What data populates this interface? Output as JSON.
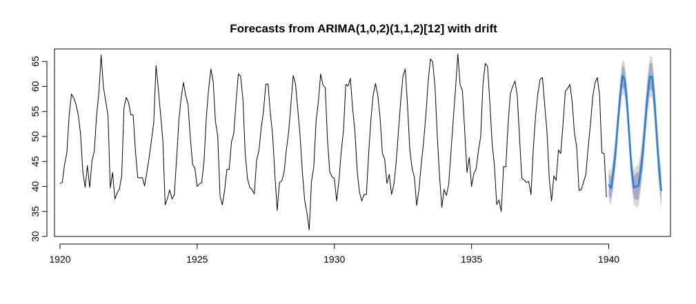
{
  "chart_data": {
    "type": "line",
    "title": "Forecasts from ARIMA(1,0,2)(1,1,2)[12] with drift",
    "xlabel": "",
    "ylabel": "",
    "xlim": [
      1919.8,
      1942.25
    ],
    "ylim": [
      30,
      67.5
    ],
    "x_ticks": [
      "1920",
      "1925",
      "1930",
      "1935",
      "1940"
    ],
    "y_ticks": [
      "30",
      "35",
      "40",
      "45",
      "50",
      "55",
      "60",
      "65"
    ],
    "grid": false,
    "legend": "none",
    "series": [
      {
        "role": "observed",
        "color": "#000000",
        "x_start": 1920.0,
        "step": 0.0833333,
        "values": [
          40.6,
          40.8,
          44.4,
          46.7,
          54.1,
          58.5,
          57.7,
          56.4,
          54.3,
          50.5,
          42.9,
          39.8,
          44.2,
          39.8,
          45.1,
          47.0,
          54.1,
          58.7,
          66.3,
          59.9,
          57.0,
          54.2,
          39.7,
          42.8,
          37.5,
          38.7,
          39.5,
          42.1,
          55.7,
          57.8,
          56.8,
          54.3,
          54.3,
          47.1,
          41.8,
          41.7,
          41.8,
          40.1,
          42.9,
          45.8,
          49.2,
          52.7,
          64.2,
          59.6,
          54.4,
          49.2,
          36.3,
          37.6,
          39.3,
          37.5,
          38.3,
          45.5,
          53.2,
          57.7,
          60.8,
          58.2,
          56.4,
          49.8,
          44.4,
          43.6,
          40.0,
          40.5,
          40.8,
          45.1,
          53.8,
          59.4,
          63.5,
          61.0,
          53.0,
          50.0,
          38.1,
          36.3,
          39.2,
          43.4,
          43.4,
          48.9,
          50.6,
          56.8,
          62.5,
          62.0,
          57.5,
          46.7,
          41.6,
          39.8,
          39.4,
          38.5,
          45.3,
          47.1,
          51.7,
          55.0,
          60.4,
          60.5,
          54.7,
          50.3,
          42.3,
          35.2,
          40.8,
          41.1,
          42.8,
          47.3,
          50.9,
          56.4,
          62.2,
          60.5,
          55.4,
          50.2,
          43.0,
          37.3,
          34.8,
          31.3,
          41.0,
          43.9,
          53.1,
          56.9,
          62.5,
          60.3,
          59.8,
          49.2,
          42.9,
          41.9,
          41.6,
          37.1,
          41.2,
          46.9,
          51.2,
          60.4,
          60.1,
          61.6,
          55.6,
          50.9,
          43.0,
          38.8,
          37.1,
          38.4,
          38.4,
          46.5,
          53.5,
          58.4,
          60.6,
          58.2,
          53.8,
          46.6,
          45.5,
          40.6,
          42.4,
          38.4,
          40.3,
          44.6,
          50.9,
          57.0,
          62.1,
          63.5,
          56.2,
          47.3,
          43.6,
          41.8,
          36.2,
          39.3,
          44.5,
          48.7,
          54.2,
          60.8,
          65.5,
          64.9,
          60.1,
          50.2,
          42.1,
          35.8,
          39.4,
          38.2,
          40.4,
          46.9,
          53.4,
          59.6,
          66.5,
          60.4,
          59.2,
          51.2,
          42.8,
          45.8,
          40.0,
          42.6,
          43.5,
          47.1,
          50.0,
          60.5,
          64.6,
          64.0,
          56.8,
          48.6,
          44.2,
          36.4,
          37.3,
          35.0,
          44.0,
          43.9,
          52.7,
          58.6,
          60.0,
          61.1,
          58.1,
          49.6,
          41.6,
          41.3,
          40.8,
          41.0,
          38.4,
          47.4,
          54.1,
          58.6,
          61.4,
          61.8,
          56.3,
          50.9,
          41.4,
          37.1,
          42.1,
          41.2,
          47.3,
          46.6,
          52.4,
          59.0,
          59.6,
          60.4,
          57.0,
          50.7,
          47.8,
          39.2,
          39.4,
          40.9,
          42.4,
          47.8,
          52.4,
          58.0,
          60.7,
          61.8,
          58.2,
          46.7,
          46.6,
          37.8
        ]
      },
      {
        "role": "forecast",
        "color": "#2a7fd4",
        "x_start": 1940.0,
        "step": 0.0833333,
        "values": [
          40.4,
          39.6,
          42.8,
          47.0,
          52.9,
          58.2,
          62.1,
          61.3,
          56.8,
          50.0,
          43.2,
          39.8,
          40.0,
          40.1,
          43.1,
          47.2,
          53.1,
          58.4,
          62.0,
          61.9,
          57.0,
          50.2,
          43.5,
          39.1
        ],
        "lower_80": [
          38.2,
          37.4,
          40.6,
          44.8,
          50.7,
          56.0,
          59.9,
          59.1,
          54.6,
          47.8,
          41.0,
          37.6,
          37.3,
          37.4,
          40.4,
          44.5,
          50.4,
          55.7,
          59.3,
          59.2,
          54.3,
          47.5,
          40.8,
          36.4
        ],
        "upper_80": [
          42.6,
          41.8,
          45.0,
          49.2,
          55.1,
          60.4,
          64.3,
          63.5,
          59.0,
          52.2,
          45.4,
          42.0,
          42.7,
          42.8,
          45.8,
          49.9,
          55.8,
          61.1,
          64.7,
          64.6,
          59.7,
          52.9,
          46.2,
          41.8
        ],
        "lower_95": [
          37.0,
          36.2,
          39.4,
          43.6,
          49.5,
          54.8,
          58.7,
          57.9,
          53.4,
          46.6,
          39.8,
          36.4,
          35.9,
          36.0,
          39.0,
          43.1,
          49.0,
          54.3,
          57.9,
          57.8,
          52.9,
          46.1,
          39.4,
          35.0
        ],
        "upper_95": [
          43.8,
          43.0,
          46.2,
          50.4,
          56.3,
          61.6,
          65.5,
          64.7,
          60.2,
          53.4,
          46.6,
          43.2,
          44.1,
          44.2,
          47.2,
          51.3,
          57.2,
          62.5,
          66.1,
          66.0,
          61.1,
          54.3,
          47.6,
          43.2
        ]
      }
    ],
    "band_colors": {
      "band_95": "#d9d9d9",
      "band_80": "#a8a8c8"
    }
  }
}
